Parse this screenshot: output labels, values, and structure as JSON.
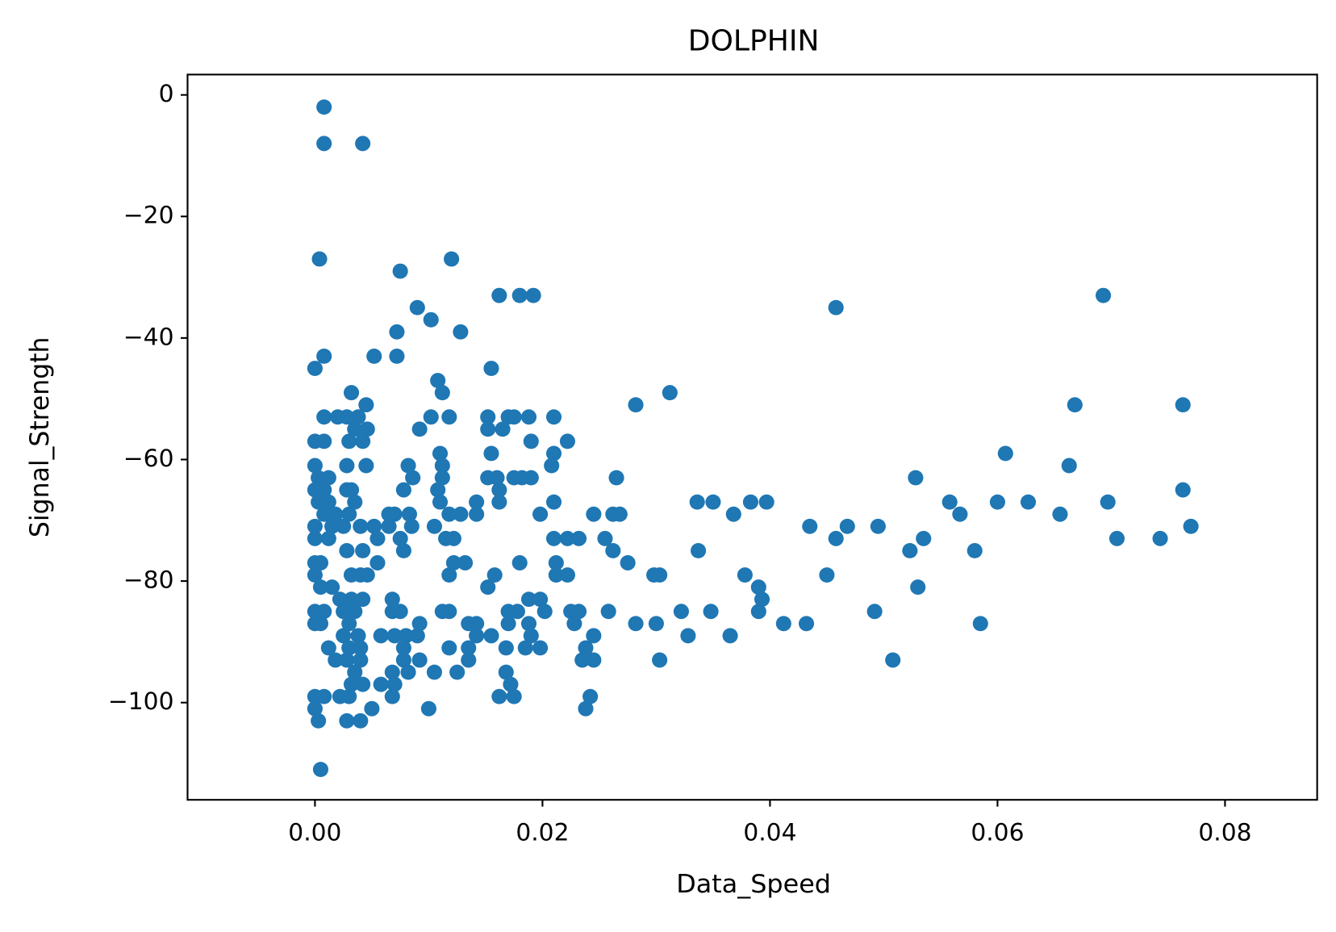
{
  "chart_data": {
    "type": "scatter",
    "title": "DOLPHIN",
    "x_label": "Data_Speed",
    "y_label": "Signal_Strength",
    "color": "#1f77b4",
    "xlim": [
      -0.0112,
      0.0881
    ],
    "ylim": [
      -116.0,
      3.35
    ],
    "xticks": [
      {
        "value": 0,
        "label": "0.00"
      },
      {
        "value": 0.02,
        "label": "0.02"
      },
      {
        "value": 0.04,
        "label": "0.04"
      },
      {
        "value": 0.06,
        "label": "0.06"
      },
      {
        "value": 0.08,
        "label": "0.08"
      }
    ],
    "yticks": [
      {
        "value": -100,
        "label": "−100"
      },
      {
        "value": -80,
        "label": "−80"
      },
      {
        "value": -60,
        "label": "−60"
      },
      {
        "value": -40,
        "label": "−40"
      },
      {
        "value": -20,
        "label": "−20"
      },
      0
    ],
    "x": [
      0.0008,
      0.0008,
      0.0042,
      0.0004,
      0.012,
      0.0075,
      0.009,
      0.0102,
      0.0072,
      0.0128,
      0.0162,
      0.018,
      0.0192,
      0.0458,
      0.0693,
      0,
      0.0008,
      0.0052,
      0.0072,
      0.0155,
      0.0108,
      0.0112,
      0.0032,
      0.0045,
      0.0282,
      0.0312,
      0.0668,
      0.0763,
      0.0008,
      0.002,
      0.0028,
      0.0038,
      0.0102,
      0.0118,
      0.0152,
      0.017,
      0.0175,
      0.0188,
      0.021,
      0.0035,
      0.0046,
      0.0092,
      0.0152,
      0.0165,
      0,
      0.0008,
      0.003,
      0.0042,
      0.019,
      0.0222,
      0.011,
      0.0155,
      0.021,
      0.0607,
      0,
      0.0028,
      0.0045,
      0.0082,
      0.0112,
      0.0208,
      0.0663,
      0.0003,
      0.0012,
      0.0086,
      0.0112,
      0.0152,
      0.016,
      0.0175,
      0.0182,
      0.019,
      0.0265,
      0.0528,
      0,
      0.0008,
      0.0028,
      0.0032,
      0.0078,
      0.0108,
      0.0162,
      0.0763,
      0.0003,
      0.0012,
      0.0035,
      0.011,
      0.0142,
      0.0162,
      0.021,
      0.0336,
      0.035,
      0.0383,
      0.0397,
      0.0558,
      0.06,
      0.0627,
      0.0697,
      0.0008,
      0.0018,
      0.003,
      0.0065,
      0.007,
      0.0083,
      0.0118,
      0.0128,
      0.0142,
      0.0198,
      0.0245,
      0.0262,
      0.0268,
      0.0368,
      0.0567,
      0.0655,
      0,
      0.0015,
      0.0025,
      0.004,
      0.0052,
      0.0065,
      0.0085,
      0.0105,
      0.0435,
      0.0468,
      0.0495,
      0.077,
      0,
      0.0012,
      0.0055,
      0.0075,
      0.0115,
      0.0122,
      0.021,
      0.0222,
      0.0232,
      0.0255,
      0.0458,
      0.0535,
      0.0705,
      0.0743,
      0.0028,
      0.0042,
      0.0078,
      0.0262,
      0.0337,
      0.0523,
      0.058,
      0,
      0.0005,
      0.0055,
      0.0122,
      0.0132,
      0.0212,
      0.018,
      0.0275,
      0,
      0.0032,
      0.004,
      0.0046,
      0.0118,
      0.0158,
      0.0212,
      0.0222,
      0.0298,
      0.0303,
      0.0378,
      0.045,
      0.0005,
      0.0015,
      0.0152,
      0.039,
      0.053,
      0.0022,
      0.0032,
      0.0042,
      0.0068,
      0.0188,
      0.0198,
      0.0393,
      0,
      0.0008,
      0.0025,
      0.0035,
      0.0068,
      0.0075,
      0.0112,
      0.0118,
      0.017,
      0.0178,
      0.0202,
      0.0225,
      0.0232,
      0.0258,
      0.0322,
      0.0348,
      0.039,
      0.0492,
      0,
      0.0005,
      0.003,
      0.0092,
      0.0135,
      0.0142,
      0.017,
      0.0188,
      0.0228,
      0.0282,
      0.03,
      0.0412,
      0.0432,
      0.0585,
      0.0025,
      0.0038,
      0.0058,
      0.007,
      0.008,
      0.009,
      0.0142,
      0.0155,
      0.019,
      0.0245,
      0.0328,
      0.0365,
      0.0012,
      0.003,
      0.004,
      0.0078,
      0.0118,
      0.0135,
      0.0168,
      0.0185,
      0.0198,
      0.0238,
      0.0018,
      0.0028,
      0.004,
      0.0078,
      0.0092,
      0.0135,
      0.0235,
      0.0245,
      0.0303,
      0.0508,
      0.0035,
      0.0068,
      0.0082,
      0.0105,
      0.0125,
      0.0168,
      0.0032,
      0.0042,
      0.0058,
      0.007,
      0.0172,
      0,
      0.0008,
      0.0022,
      0.003,
      0.0068,
      0.0162,
      0.0175,
      0.0242,
      0,
      0.005,
      0.01,
      0.0238,
      0.0003,
      0.0028,
      0.004,
      0.0005
    ],
    "values": [
      -2,
      -8,
      -8,
      -27,
      -27,
      -29,
      -35,
      -37,
      -39,
      -39,
      -33,
      -33,
      -33,
      -35,
      -33,
      -45,
      -43,
      -43,
      -43,
      -45,
      -47,
      -49,
      -49,
      -51,
      -51,
      -49,
      -51,
      -51,
      -53,
      -53,
      -53,
      -53,
      -53,
      -53,
      -53,
      -53,
      -53,
      -53,
      -53,
      -55,
      -55,
      -55,
      -55,
      -55,
      -57,
      -57,
      -57,
      -57,
      -57,
      -57,
      -59,
      -59,
      -59,
      -59,
      -61,
      -61,
      -61,
      -61,
      -61,
      -61,
      -61,
      -63,
      -63,
      -63,
      -63,
      -63,
      -63,
      -63,
      -63,
      -63,
      -63,
      -63,
      -65,
      -65,
      -65,
      -65,
      -65,
      -65,
      -65,
      -65,
      -67,
      -67,
      -67,
      -67,
      -67,
      -67,
      -67,
      -67,
      -67,
      -67,
      -67,
      -67,
      -67,
      -67,
      -67,
      -69,
      -69,
      -69,
      -69,
      -69,
      -69,
      -69,
      -69,
      -69,
      -69,
      -69,
      -69,
      -69,
      -69,
      -69,
      -69,
      -71,
      -71,
      -71,
      -71,
      -71,
      -71,
      -71,
      -71,
      -71,
      -71,
      -71,
      -71,
      -73,
      -73,
      -73,
      -73,
      -73,
      -73,
      -73,
      -73,
      -73,
      -73,
      -73,
      -73,
      -73,
      -73,
      -75,
      -75,
      -75,
      -75,
      -75,
      -75,
      -75,
      -77,
      -77,
      -77,
      -77,
      -77,
      -77,
      -77,
      -77,
      -79,
      -79,
      -79,
      -79,
      -79,
      -79,
      -79,
      -79,
      -79,
      -79,
      -79,
      -79,
      -81,
      -81,
      -81,
      -81,
      -81,
      -83,
      -83,
      -83,
      -83,
      -83,
      -83,
      -83,
      -85,
      -85,
      -85,
      -85,
      -85,
      -85,
      -85,
      -85,
      -85,
      -85,
      -85,
      -85,
      -85,
      -85,
      -85,
      -85,
      -85,
      -85,
      -87,
      -87,
      -87,
      -87,
      -87,
      -87,
      -87,
      -87,
      -87,
      -87,
      -87,
      -87,
      -87,
      -87,
      -89,
      -89,
      -89,
      -89,
      -89,
      -89,
      -89,
      -89,
      -89,
      -89,
      -89,
      -89,
      -91,
      -91,
      -91,
      -91,
      -91,
      -91,
      -91,
      -91,
      -91,
      -91,
      -93,
      -93,
      -93,
      -93,
      -93,
      -93,
      -93,
      -93,
      -93,
      -93,
      -95,
      -95,
      -95,
      -95,
      -95,
      -95,
      -97,
      -97,
      -97,
      -97,
      -97,
      -99,
      -99,
      -99,
      -99,
      -99,
      -99,
      -99,
      -99,
      -101,
      -101,
      -101,
      -101,
      -103,
      -103,
      -103,
      -111
    ]
  }
}
